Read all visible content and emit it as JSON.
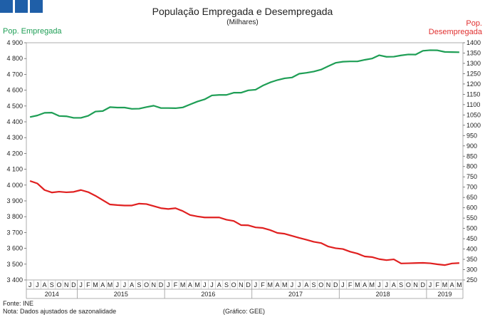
{
  "chart_data": {
    "type": "line",
    "title": "População Empregada e Desempregada",
    "subtitle": "(Milhares)",
    "ylabel_left": "Pop. Empregada",
    "ylabel_right_line1": "Pop.",
    "ylabel_right_line2": "Desempregada",
    "ylim_left": [
      3400,
      4900
    ],
    "ylim_right": [
      250,
      1400
    ],
    "yticks_left": [
      "3 400",
      "3 500",
      "3 600",
      "3 700",
      "3 800",
      "3 900",
      "4 000",
      "4 100",
      "4 200",
      "4 300",
      "4 400",
      "4 500",
      "4 600",
      "4 700",
      "4 800",
      "4 900"
    ],
    "yticks_right": [
      "250",
      "300",
      "350",
      "400",
      "450",
      "500",
      "550",
      "600",
      "650",
      "700",
      "750",
      "800",
      "850",
      "900",
      "950",
      "1000",
      "1050",
      "1100",
      "1150",
      "1200",
      "1250",
      "1300",
      "1350",
      "1400"
    ],
    "month_labels": [
      "J",
      "J",
      "A",
      "S",
      "O",
      "N",
      "D",
      "J",
      "F",
      "M",
      "A",
      "M",
      "J",
      "J",
      "A",
      "S",
      "O",
      "N",
      "D",
      "J",
      "F",
      "M",
      "A",
      "M",
      "J",
      "J",
      "A",
      "S",
      "O",
      "N",
      "D",
      "J",
      "F",
      "M",
      "A",
      "M",
      "J",
      "J",
      "A",
      "S",
      "O",
      "N",
      "D",
      "J",
      "F",
      "M",
      "A",
      "M",
      "J",
      "J",
      "A",
      "S",
      "O",
      "N",
      "D",
      "J",
      "F",
      "M",
      "A",
      "M"
    ],
    "years": [
      {
        "label": "2014",
        "start": 0,
        "count": 7
      },
      {
        "label": "2015",
        "start": 7,
        "count": 12
      },
      {
        "label": "2016",
        "start": 19,
        "count": 12
      },
      {
        "label": "2017",
        "start": 31,
        "count": 12
      },
      {
        "label": "2018",
        "start": 43,
        "count": 12
      },
      {
        "label": "2019",
        "start": 55,
        "count": 5
      }
    ],
    "series": [
      {
        "name": "Pop. Empregada",
        "axis": "left",
        "color": "#1e9e55",
        "values": [
          4430,
          4440,
          4457,
          4458,
          4437,
          4435,
          4425,
          4425,
          4438,
          4465,
          4468,
          4493,
          4490,
          4490,
          4482,
          4483,
          4493,
          4502,
          4487,
          4487,
          4486,
          4491,
          4510,
          4528,
          4542,
          4567,
          4570,
          4570,
          4584,
          4584,
          4599,
          4603,
          4629,
          4649,
          4664,
          4675,
          4680,
          4704,
          4710,
          4718,
          4730,
          4752,
          4773,
          4780,
          4782,
          4782,
          4792,
          4800,
          4821,
          4811,
          4812,
          4820,
          4826,
          4825,
          4849,
          4853,
          4852,
          4842,
          4841,
          4840
        ]
      },
      {
        "name": "Pop. Desempregada",
        "axis": "right",
        "color": "#e02020",
        "values": [
          730,
          718,
          686,
          674,
          678,
          675,
          677,
          686,
          676,
          658,
          637,
          616,
          613,
          611,
          611,
          620,
          618,
          608,
          598,
          594,
          598,
          584,
          565,
          558,
          553,
          553,
          553,
          542,
          536,
          516,
          515,
          505,
          502,
          492,
          478,
          474,
          464,
          454,
          445,
          435,
          429,
          412,
          404,
          400,
          387,
          378,
          364,
          361,
          351,
          346,
          350,
          330,
          331,
          332,
          333,
          331,
          326,
          322,
          330,
          332
        ]
      }
    ]
  },
  "footer": {
    "source": "Fonte: INE",
    "note": "Nota: Dados ajustados de sazonalidade",
    "credit": "(Gráfico: GEE)"
  }
}
